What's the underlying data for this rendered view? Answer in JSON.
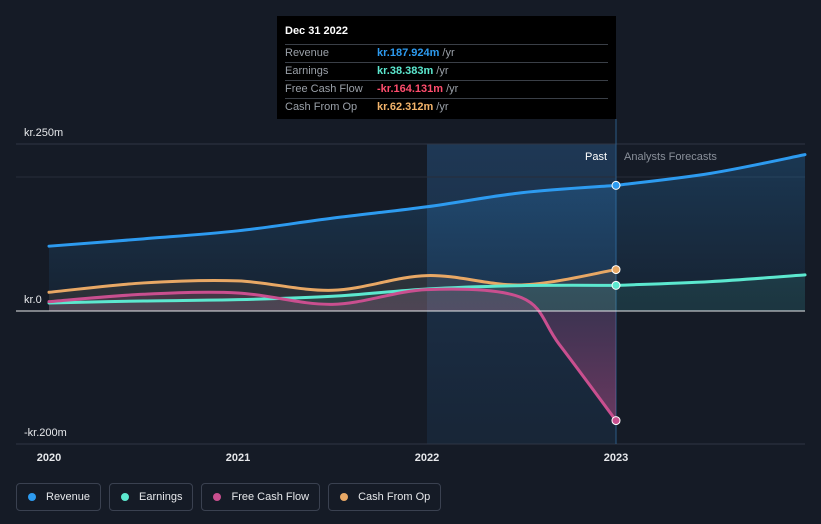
{
  "tooltip": {
    "date": "Dec 31 2022",
    "rows": [
      {
        "name": "Revenue",
        "value": "kr.187.924m",
        "unit": "/yr",
        "color": "#2d9bf0"
      },
      {
        "name": "Earnings",
        "value": "kr.38.383m",
        "unit": "/yr",
        "color": "#5ce8cf"
      },
      {
        "name": "Free Cash Flow",
        "value": "-kr.164.131m",
        "unit": "/yr",
        "color": "#ff4d6d"
      },
      {
        "name": "Cash From Op",
        "value": "kr.62.312m",
        "unit": "/yr",
        "color": "#f3b46b"
      }
    ]
  },
  "regions": {
    "past": "Past",
    "forecast": "Analysts Forecasts"
  },
  "legend": [
    {
      "label": "Revenue",
      "color": "#2d9bf0"
    },
    {
      "label": "Earnings",
      "color": "#5ce8cf"
    },
    {
      "label": "Free Cash Flow",
      "color": "#c94f8f"
    },
    {
      "label": "Cash From Op",
      "color": "#e8a865"
    }
  ],
  "chart_data": {
    "type": "line",
    "y_unit": "kr. m",
    "ylim": [
      -200,
      250
    ],
    "y_ticks": [
      {
        "value": 250,
        "label": "kr.250m"
      },
      {
        "value": 0,
        "label": "kr.0"
      },
      {
        "value": -200,
        "label": "-kr.200m"
      }
    ],
    "xlim": [
      2020.0,
      2024.0
    ],
    "x_ticks": [
      {
        "value": 2020,
        "label": "2020"
      },
      {
        "value": 2021,
        "label": "2021"
      },
      {
        "value": 2022,
        "label": "2022"
      },
      {
        "value": 2023,
        "label": "2023"
      }
    ],
    "highlight_start": 2022.0,
    "past_end": 2023.0,
    "series": [
      {
        "name": "Revenue",
        "color": "#2d9bf0",
        "points": [
          [
            2020.0,
            97
          ],
          [
            2020.5,
            108
          ],
          [
            2021.0,
            120
          ],
          [
            2021.5,
            139
          ],
          [
            2022.0,
            156
          ],
          [
            2022.5,
            177
          ],
          [
            2023.0,
            188
          ],
          [
            2023.5,
            206
          ],
          [
            2024.0,
            234
          ]
        ]
      },
      {
        "name": "Earnings",
        "color": "#5ce8cf",
        "points": [
          [
            2020.0,
            12
          ],
          [
            2020.5,
            15
          ],
          [
            2021.0,
            17
          ],
          [
            2021.5,
            22
          ],
          [
            2022.0,
            33
          ],
          [
            2022.5,
            38
          ],
          [
            2023.0,
            38.4
          ],
          [
            2023.5,
            44
          ],
          [
            2024.0,
            54
          ]
        ]
      },
      {
        "name": "Free Cash Flow",
        "color": "#c94f8f",
        "points": [
          [
            2020.0,
            14
          ],
          [
            2020.5,
            25
          ],
          [
            2021.0,
            27
          ],
          [
            2021.5,
            10
          ],
          [
            2022.0,
            32
          ],
          [
            2022.5,
            20
          ],
          [
            2022.7,
            -50
          ],
          [
            2023.0,
            -164
          ]
        ]
      },
      {
        "name": "Cash From Op",
        "color": "#e8a865",
        "points": [
          [
            2020.0,
            28
          ],
          [
            2020.5,
            42
          ],
          [
            2021.0,
            45
          ],
          [
            2021.5,
            31
          ],
          [
            2022.0,
            53
          ],
          [
            2022.5,
            39
          ],
          [
            2023.0,
            62
          ]
        ]
      }
    ]
  }
}
